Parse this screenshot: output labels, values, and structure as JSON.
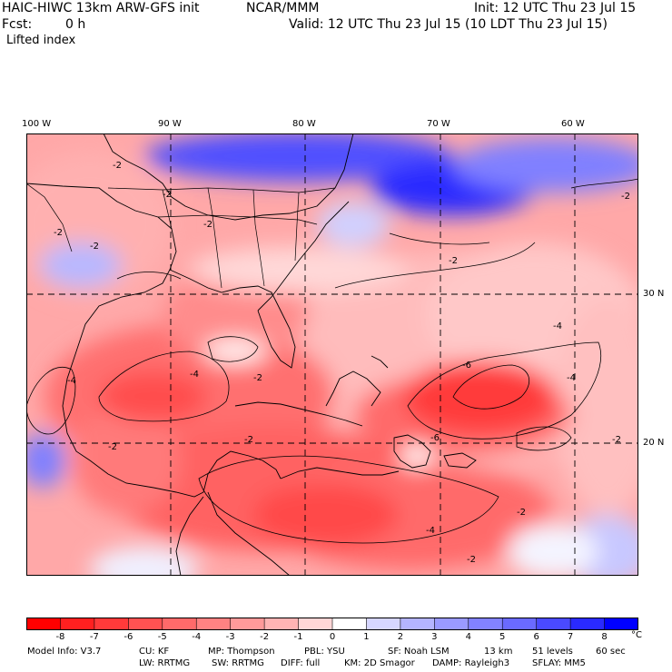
{
  "header": {
    "model_title": "HAIC-HIWC 13km ARW-GFS init",
    "org": "NCAR/MMM",
    "init": "Init: 12 UTC Thu 23 Jul 15",
    "fcst_label": "Fcst:",
    "fcst_value": "0 h",
    "valid": "Valid: 12 UTC Thu 23 Jul 15 (10 LDT Thu 23 Jul 15)",
    "field": "Lifted index"
  },
  "map": {
    "lon_labels": [
      "100 W",
      "90 W",
      "80 W",
      "70 W",
      "60 W"
    ],
    "lat_labels": [
      "30 N",
      "20 N"
    ],
    "contour_labels": [
      "-2",
      "-2",
      "-2",
      "-2",
      "-2",
      "-4",
      "-2",
      "-4",
      "-6",
      "-4",
      "-2",
      "-4",
      "-2",
      "-2",
      "-6",
      "-2",
      "-4",
      "-2",
      "-2",
      "-2"
    ],
    "colors": {
      "strong_negative": "#ff0000",
      "mid_negative": "#ff6a6a",
      "weak_negative": "#ffc0c0",
      "neutral": "#ffffff",
      "weak_positive": "#c8c8ff",
      "strong_positive": "#0000ff"
    }
  },
  "colorbar": {
    "ticks": [
      "-8",
      "-7",
      "-6",
      "-5",
      "-4",
      "-3",
      "-2",
      "-1",
      "0",
      "1",
      "2",
      "3",
      "4",
      "5",
      "6",
      "7",
      "8"
    ],
    "unit": "°C",
    "colors": [
      "#ff0000",
      "#ff2020",
      "#ff3a3a",
      "#ff5252",
      "#ff6a6a",
      "#ff8282",
      "#ff9a9a",
      "#ffb4b4",
      "#ffd6d6",
      "#ffffff",
      "#d6d6ff",
      "#b4b4ff",
      "#9a9aff",
      "#8282ff",
      "#6a6aff",
      "#4a4aff",
      "#2a2aff",
      "#0000ff"
    ]
  },
  "model_info": {
    "line1": {
      "model": "Model Info: V3.7",
      "cu": "CU: KF",
      "mp": "MP: Thompson",
      "pbl": "PBL: YSU",
      "sf": "SF: Noah LSM",
      "res": "13 km",
      "levels": "51 levels",
      "dt": "60 sec"
    },
    "line2": {
      "lw": "LW: RRTMG",
      "sw": "SW: RRTMG",
      "diff": "DIFF: full",
      "km": "KM: 2D Smagor",
      "damp": "DAMP: Rayleigh3",
      "sflay": "SFLAY: MM5"
    }
  }
}
